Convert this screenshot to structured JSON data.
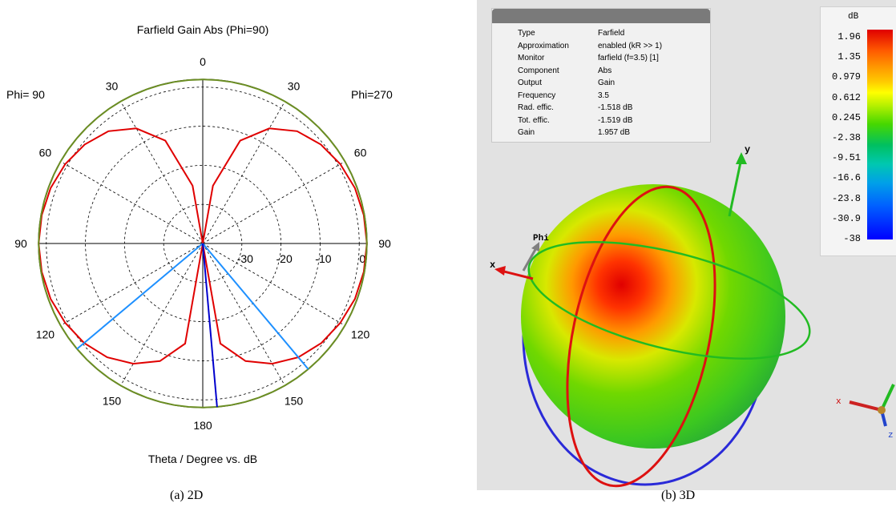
{
  "chart_data": [
    {
      "type": "polar",
      "title": "Farfield Gain Abs (Phi=90)",
      "xlabel": "Theta / Degree vs. dB",
      "left_label": "Phi= 90",
      "right_label": "Phi=270",
      "angle_ticks": [
        "0",
        "30",
        "60",
        "90",
        "120",
        "150",
        "180",
        "150",
        "120",
        "90",
        "60",
        "30"
      ],
      "radial_ticks": [
        "-30",
        "-20",
        "-10",
        "0"
      ],
      "radial_range": [
        -40,
        2
      ],
      "series": [
        {
          "color": "#e00000",
          "points": [
            [
              0,
              -40
            ],
            [
              10,
              -25
            ],
            [
              20,
              -12
            ],
            [
              30,
              -6
            ],
            [
              40,
              -2.5
            ],
            [
              50,
              -0.6
            ],
            [
              60,
              0.6
            ],
            [
              70,
              1.4
            ],
            [
              80,
              1.8
            ],
            [
              90,
              1.957
            ],
            [
              100,
              1.8
            ],
            [
              110,
              1.4
            ],
            [
              120,
              0.6
            ],
            [
              130,
              -0.4
            ],
            [
              140,
              -2
            ],
            [
              150,
              -4.5
            ],
            [
              160,
              -8
            ],
            [
              170,
              -14
            ],
            [
              180,
              -40
            ]
          ]
        },
        {
          "color": "#6b8e23",
          "points": [
            [
              0,
              1.957
            ],
            [
              90,
              1.957
            ],
            [
              180,
              1.957
            ],
            [
              270,
              1.957
            ],
            [
              360,
              1.957
            ]
          ]
        }
      ],
      "markers": [
        {
          "color": "#1e90ff",
          "angles": [
            140,
            230
          ]
        },
        {
          "color": "#0000cd",
          "angles": [
            175
          ]
        }
      ]
    }
  ],
  "panel3d": {
    "info": [
      {
        "k": "Type",
        "v": "Farfield"
      },
      {
        "k": "Approximation",
        "v": "enabled (kR >> 1)"
      },
      {
        "k": "Monitor",
        "v": "farfield (f=3.5) [1]"
      },
      {
        "k": "Component",
        "v": "Abs"
      },
      {
        "k": "Output",
        "v": "Gain"
      },
      {
        "k": "Frequency",
        "v": "3.5"
      },
      {
        "k": "Rad. effic.",
        "v": "-1.518 dB"
      },
      {
        "k": "Tot. effic.",
        "v": "-1.519 dB"
      },
      {
        "k": "Gain",
        "v": "1.957 dB"
      }
    ],
    "legend_unit": "dB",
    "legend_ticks": [
      "1.96",
      "1.35",
      "0.979",
      "0.612",
      "0.245",
      "-2.38",
      "-9.51",
      "-16.6",
      "-23.8",
      "-30.9",
      "-38"
    ],
    "axis_labels": {
      "x": "x",
      "y": "y",
      "phi": "Phi",
      "mini_x": "x",
      "mini_z": "z"
    }
  },
  "captions": {
    "a": "(a) 2D",
    "b": "(b) 3D"
  }
}
